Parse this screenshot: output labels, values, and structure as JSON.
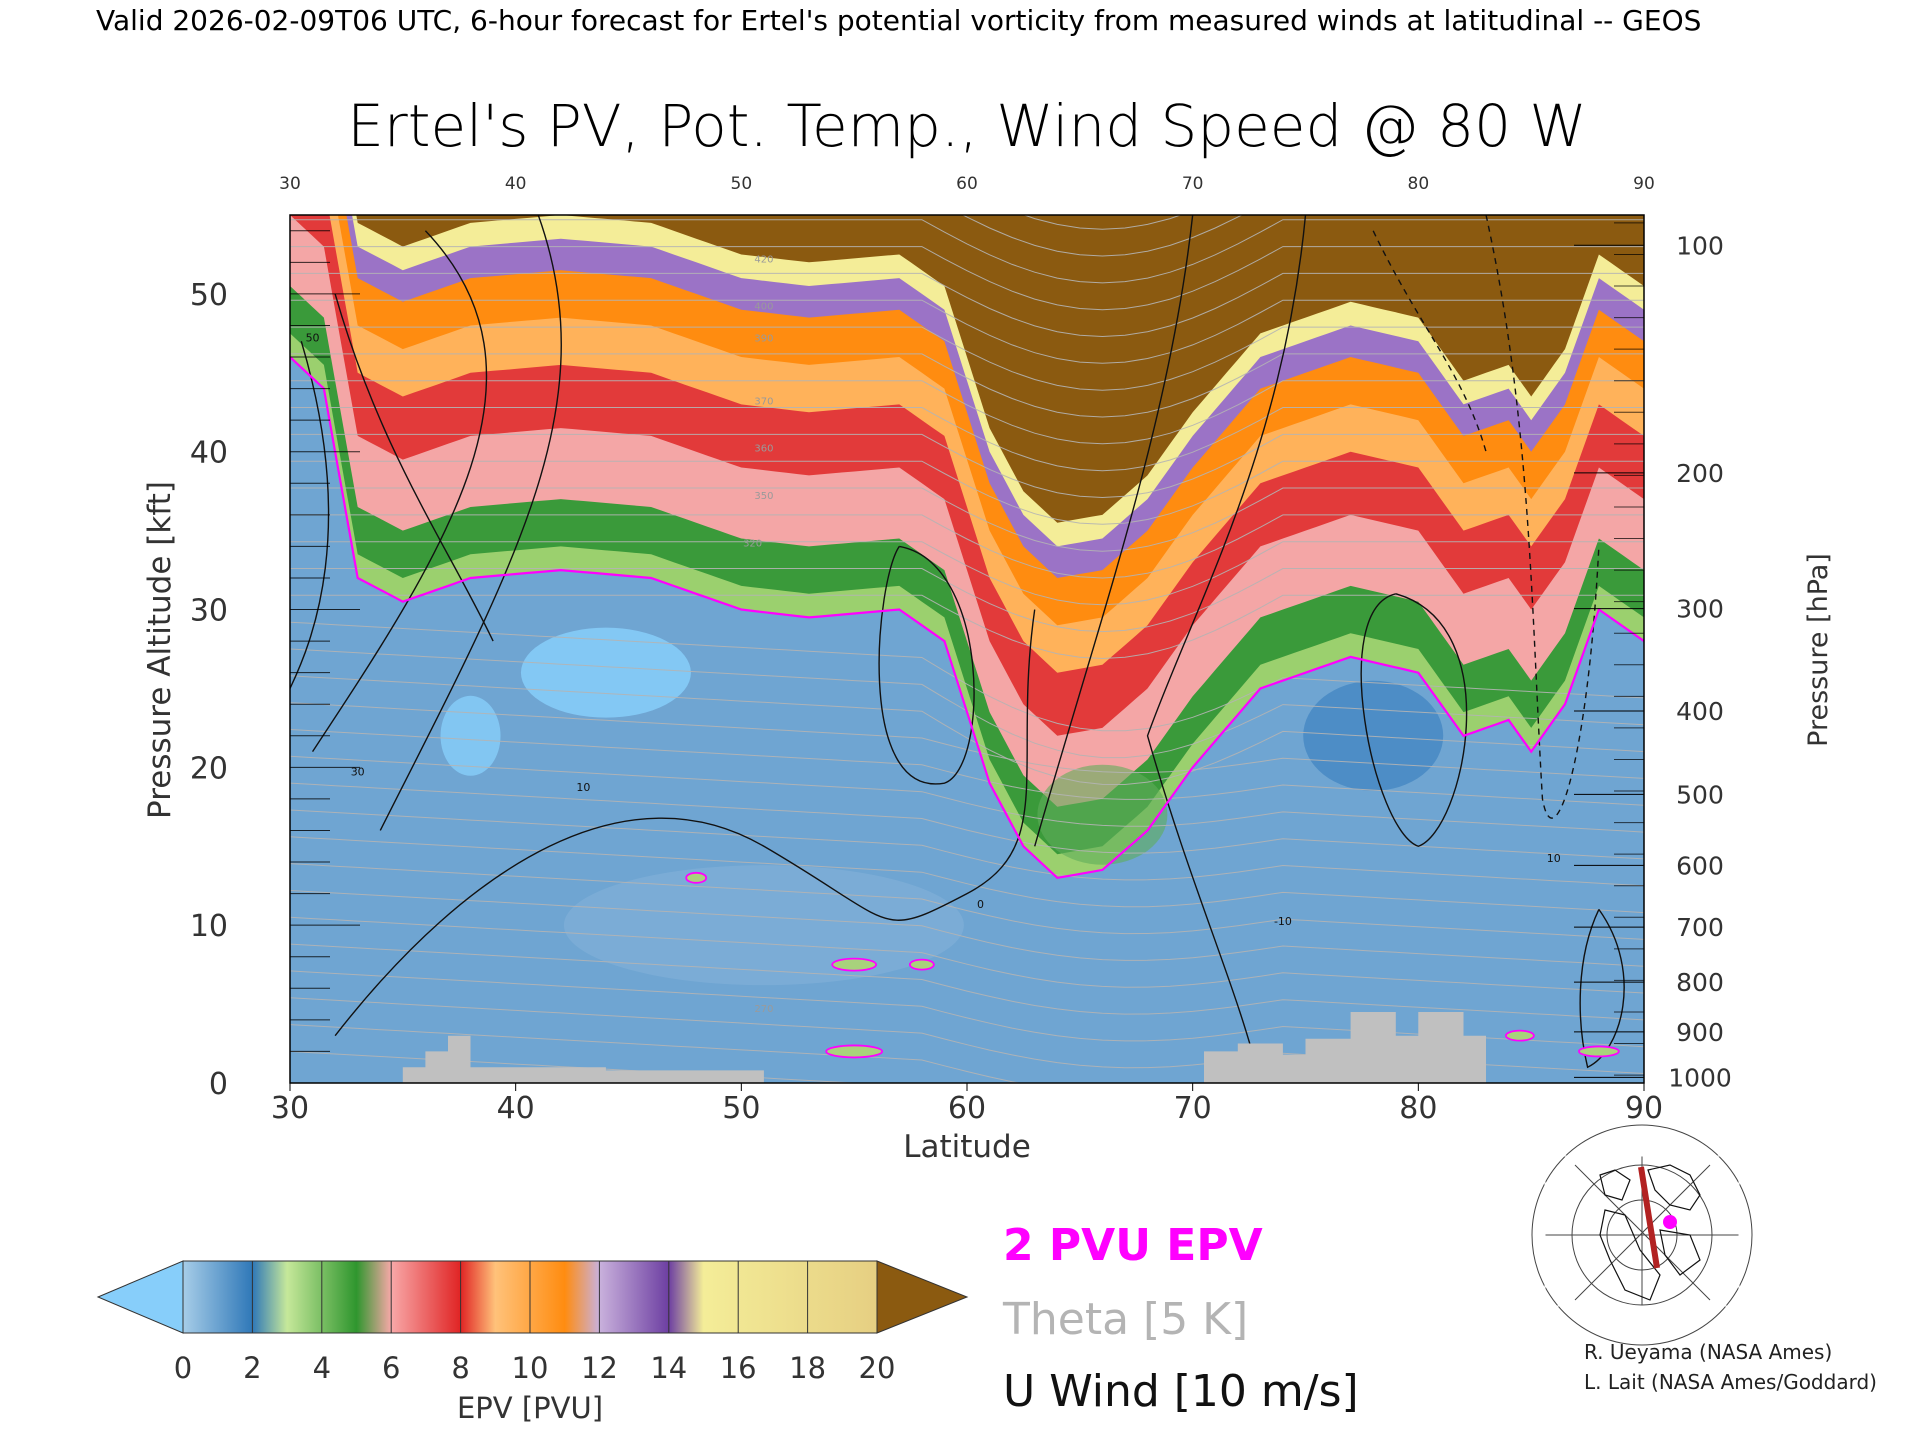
{
  "header": {
    "valid_line": "Valid 2026-02-09T06 UTC, 6-hour forecast for Ertel's potential vorticity from measured winds at latitudinal -- GEOS"
  },
  "chart_data": {
    "type": "heatmap",
    "title": "Ertel's PV, Pot. Temp., Wind Speed @ 80 W",
    "xlabel": "Latitude",
    "ylabel": "Pressure Altitude [kft]",
    "ylabel_right": "Pressure [hPa]",
    "xlim": [
      30,
      90
    ],
    "ylim": [
      0,
      55
    ],
    "x_ticks": [
      "30",
      "40",
      "50",
      "60",
      "70",
      "80",
      "90"
    ],
    "top_ticks": [
      "30",
      "40",
      "50",
      "60",
      "70",
      "80",
      "90"
    ],
    "y_ticks": [
      "0",
      "10",
      "20",
      "30",
      "40",
      "50"
    ],
    "pressure_ticks": [
      {
        "label": "1000",
        "kft": 0.36
      },
      {
        "label": "900",
        "kft": 3.24
      },
      {
        "label": "800",
        "kft": 6.39
      },
      {
        "label": "700",
        "kft": 9.88
      },
      {
        "label": "600",
        "kft": 13.79
      },
      {
        "label": "500",
        "kft": 18.29
      },
      {
        "label": "400",
        "kft": 23.57
      },
      {
        "label": "300",
        "kft": 30.06
      },
      {
        "label": "200",
        "kft": 38.66
      },
      {
        "label": "100",
        "kft": 53.08
      }
    ],
    "colorbar": {
      "label": "EPV [PVU]",
      "ticks": [
        "0",
        "2",
        "4",
        "6",
        "8",
        "10",
        "12",
        "14",
        "16",
        "18",
        "20"
      ],
      "colors": [
        "#a7cde8",
        "#2f78b8",
        "#c6e89a",
        "#2f962e",
        "#f8a8a8",
        "#e02424",
        "#ffc27a",
        "#ff8c10",
        "#c9b1dc",
        "#6d3fa2",
        "#f4ed98"
      ],
      "under_color": "#87cefa",
      "over_color": "#8b5a10"
    },
    "tropopause_2pvu_kft": [
      {
        "lat": 30,
        "kft": 46
      },
      {
        "lat": 31.5,
        "kft": 44
      },
      {
        "lat": 33,
        "kft": 32
      },
      {
        "lat": 35,
        "kft": 30.5
      },
      {
        "lat": 38,
        "kft": 32
      },
      {
        "lat": 42,
        "kft": 32.5
      },
      {
        "lat": 46,
        "kft": 32
      },
      {
        "lat": 50,
        "kft": 30
      },
      {
        "lat": 53,
        "kft": 29.5
      },
      {
        "lat": 57,
        "kft": 30
      },
      {
        "lat": 59,
        "kft": 28
      },
      {
        "lat": 61,
        "kft": 19
      },
      {
        "lat": 62.5,
        "kft": 15
      },
      {
        "lat": 64,
        "kft": 13
      },
      {
        "lat": 66,
        "kft": 13.5
      },
      {
        "lat": 68,
        "kft": 16
      },
      {
        "lat": 70,
        "kft": 20
      },
      {
        "lat": 73,
        "kft": 25
      },
      {
        "lat": 77,
        "kft": 27
      },
      {
        "lat": 80,
        "kft": 26
      },
      {
        "lat": 82,
        "kft": 22
      },
      {
        "lat": 84,
        "kft": 23
      },
      {
        "lat": 85,
        "kft": 21
      },
      {
        "lat": 86.5,
        "kft": 24
      },
      {
        "lat": 88,
        "kft": 30
      },
      {
        "lat": 90,
        "kft": 28
      }
    ],
    "theta_contour_labels": [
      "270",
      "320",
      "350",
      "360",
      "370",
      "390",
      "400",
      "420"
    ],
    "wind_contour_labels": [
      "10",
      "30",
      "50",
      "0",
      "-10",
      "10"
    ],
    "annotations": {
      "pv_legend": "2 PVU EPV",
      "theta_legend": "Theta [5 K]",
      "wind_legend": "U Wind [10 m/s]",
      "pv_color": "#ff00ff",
      "theta_color": "#b4b4b4"
    },
    "credits": [
      "R. Ueyama (NASA Ames)",
      "L. Lait (NASA Ames/Goddard)"
    ]
  }
}
